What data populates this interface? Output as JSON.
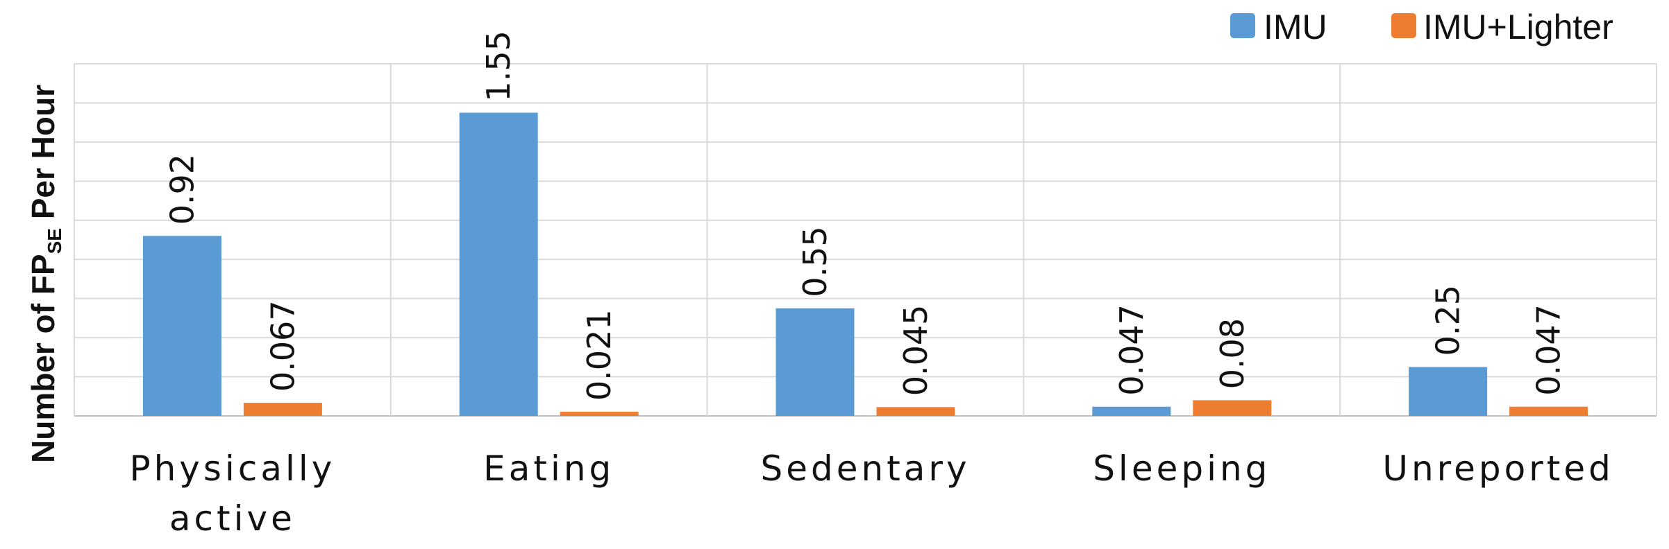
{
  "chart_data": {
    "type": "bar",
    "title": "",
    "xlabel": "",
    "ylabel": "Number of FP",
    "ylabel_subscript": "SE",
    "ylabel_suffix": " Per Hour",
    "categories": [
      "Physically active",
      "Eating",
      "Sedentary",
      "Sleeping",
      "Unreported"
    ],
    "category_lines": [
      [
        "Physically",
        "active"
      ],
      [
        "Eating"
      ],
      [
        "Sedentary"
      ],
      [
        "Sleeping"
      ],
      [
        "Unreported"
      ]
    ],
    "series": [
      {
        "name": "IMU",
        "color": "#5B9BD5",
        "values": [
          0.92,
          1.55,
          0.55,
          0.047,
          0.25
        ],
        "labels": [
          "0.92",
          "1.55",
          "0.55",
          "0.047",
          "0.25"
        ]
      },
      {
        "name": "IMU+Lighter",
        "color": "#ED7D31",
        "values": [
          0.067,
          0.021,
          0.045,
          0.08,
          0.047
        ],
        "labels": [
          "0.067",
          "0.021",
          "0.045",
          "0.08",
          "0.047"
        ]
      }
    ],
    "ylim": [
      0,
      1.8
    ],
    "y_gridlines": 9,
    "y_tick_labels_shown": false,
    "grid": true,
    "vertical_category_separators": true,
    "data_labels_rotated": true,
    "legend": "top-right"
  }
}
